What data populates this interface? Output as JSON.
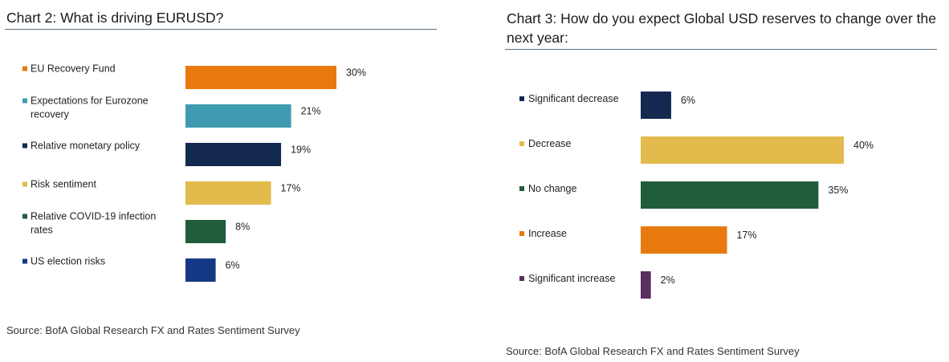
{
  "chart_data": [
    {
      "type": "bar",
      "orientation": "horizontal",
      "title": "Chart 2: What is driving EURUSD?",
      "source": "Source: BofA Global Research FX and Rates Sentiment Survey",
      "categories": [
        [
          "EU Recovery Fund"
        ],
        [
          "Expectations for Eurozone",
          "recovery"
        ],
        [
          "Relative monetary policy"
        ],
        [
          "Risk sentiment"
        ],
        [
          "Relative COVID-19 infection",
          "rates"
        ],
        [
          "US election risks"
        ]
      ],
      "values": [
        30,
        21,
        19,
        17,
        8,
        6
      ],
      "value_labels": [
        "30%",
        "21%",
        "19%",
        "17%",
        "8%",
        "6%"
      ],
      "colors": [
        "#e8790f",
        "#3f9bb0",
        "#14294f",
        "#e3bb4c",
        "#215d3a",
        "#143883"
      ],
      "xlim": [
        0,
        30
      ],
      "grid": false,
      "legend": "none"
    },
    {
      "type": "bar",
      "orientation": "horizontal",
      "title": "Chart 3: How do you expect Global USD reserves to change over the next year:",
      "source": "Source: BofA Global Research FX and Rates Sentiment Survey",
      "categories": [
        [
          "Significant decrease"
        ],
        [
          "Decrease"
        ],
        [
          "No change"
        ],
        [
          "Increase"
        ],
        [
          "Significant increase"
        ]
      ],
      "values": [
        6,
        40,
        35,
        17,
        2
      ],
      "value_labels": [
        "6%",
        "40%",
        "35%",
        "17%",
        "2%"
      ],
      "colors": [
        "#14294f",
        "#e3bb4c",
        "#215d3a",
        "#e8790f",
        "#5a2e5e"
      ],
      "xlim": [
        0,
        40
      ],
      "grid": false,
      "legend": "none"
    }
  ]
}
